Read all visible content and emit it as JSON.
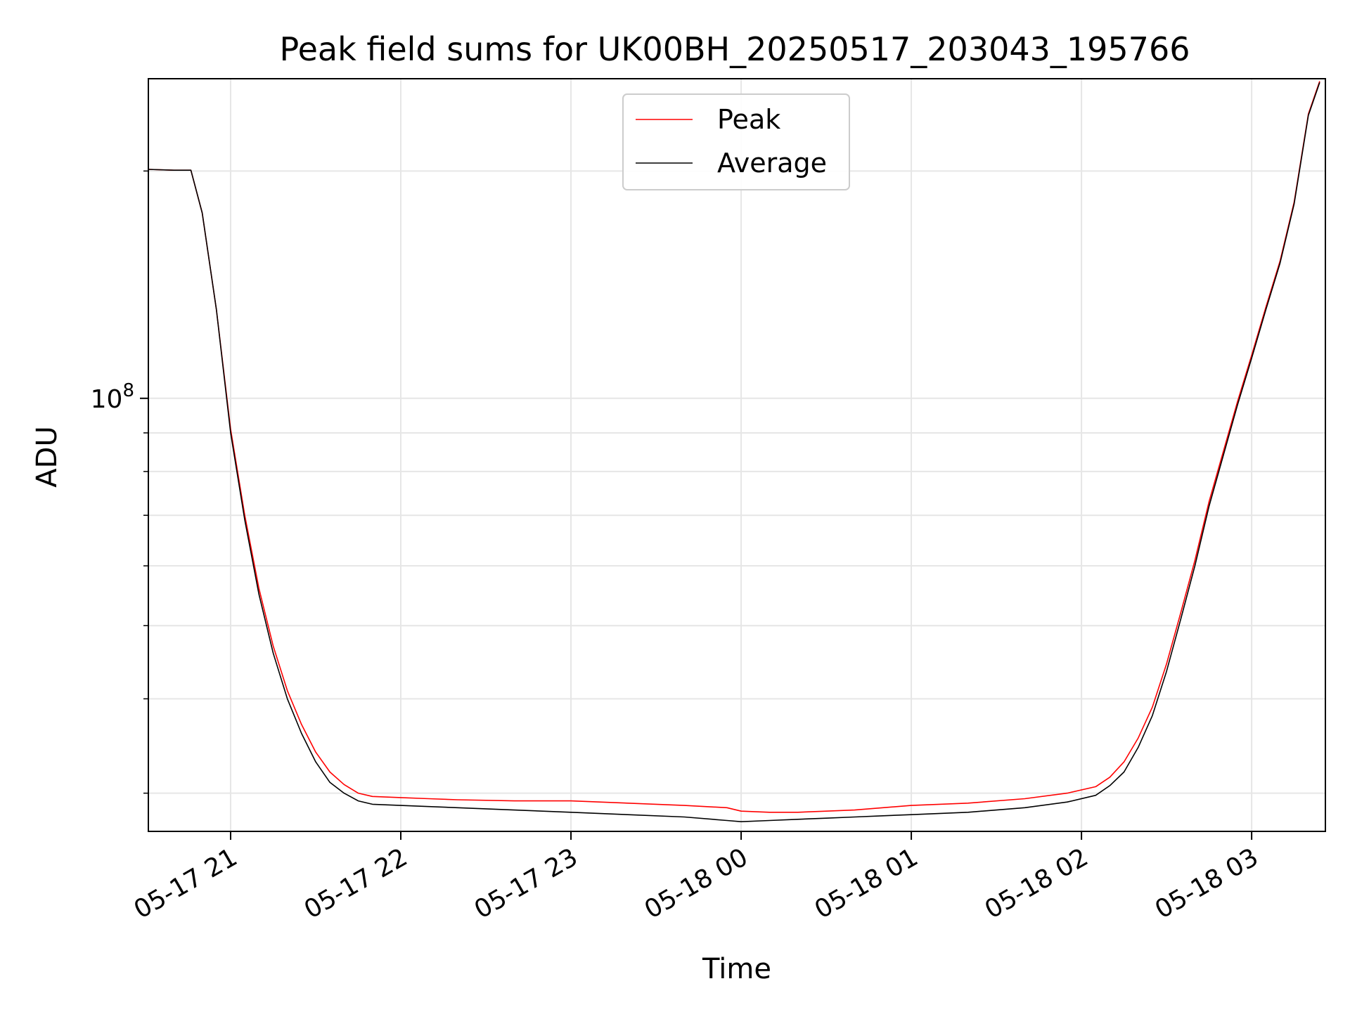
{
  "chart_data": {
    "type": "line",
    "title": "Peak field sums for UK00BH_20250517_203043_195766",
    "xlabel": "Time",
    "ylabel": "ADU",
    "y_scale": "log",
    "xlim": [
      "2025-05-17 20:31",
      "2025-05-18 03:26"
    ],
    "ylim": [
      26700000,
      265000000
    ],
    "x_ticks": [
      {
        "value": "2025-05-17 21:00",
        "label": "05-17 21"
      },
      {
        "value": "2025-05-17 22:00",
        "label": "05-17 22"
      },
      {
        "value": "2025-05-17 23:00",
        "label": "05-17 23"
      },
      {
        "value": "2025-05-18 00:00",
        "label": "05-18 00"
      },
      {
        "value": "2025-05-18 01:00",
        "label": "05-18 01"
      },
      {
        "value": "2025-05-18 02:00",
        "label": "05-18 02"
      },
      {
        "value": "2025-05-18 03:00",
        "label": "05-18 03"
      }
    ],
    "y_ticks": [
      {
        "value": 100000000,
        "label_base": "10",
        "label_exp": "8"
      }
    ],
    "y_minor_ticks": [
      30000000,
      40000000,
      50000000,
      60000000,
      70000000,
      80000000,
      90000000,
      200000000
    ],
    "grid": true,
    "legend": "upper-center",
    "series": [
      {
        "name": "Peak",
        "color": "#ff0000",
        "x": [
          "2025-05-17 20:31",
          "2025-05-17 20:40",
          "2025-05-17 20:46",
          "2025-05-17 20:50",
          "2025-05-17 20:55",
          "2025-05-17 21:00",
          "2025-05-17 21:05",
          "2025-05-17 21:10",
          "2025-05-17 21:15",
          "2025-05-17 21:20",
          "2025-05-17 21:25",
          "2025-05-17 21:30",
          "2025-05-17 21:35",
          "2025-05-17 21:40",
          "2025-05-17 21:45",
          "2025-05-17 21:50",
          "2025-05-17 22:00",
          "2025-05-17 22:10",
          "2025-05-17 22:20",
          "2025-05-17 22:40",
          "2025-05-17 23:00",
          "2025-05-17 23:20",
          "2025-05-17 23:40",
          "2025-05-17 23:55",
          "2025-05-18 00:00",
          "2025-05-18 00:10",
          "2025-05-18 00:20",
          "2025-05-18 00:30",
          "2025-05-18 00:40",
          "2025-05-18 00:50",
          "2025-05-18 01:00",
          "2025-05-18 01:20",
          "2025-05-18 01:40",
          "2025-05-18 01:55",
          "2025-05-18 02:05",
          "2025-05-18 02:10",
          "2025-05-18 02:15",
          "2025-05-18 02:20",
          "2025-05-18 02:25",
          "2025-05-18 02:30",
          "2025-05-18 02:35",
          "2025-05-18 02:40",
          "2025-05-18 02:45",
          "2025-05-18 02:50",
          "2025-05-18 02:55",
          "2025-05-18 03:00",
          "2025-05-18 03:05",
          "2025-05-18 03:10",
          "2025-05-18 03:15",
          "2025-05-18 03:20",
          "2025-05-18 03:24"
        ],
        "values": [
          201000000,
          200500000,
          200500000,
          176000000,
          131000000,
          91000000,
          70000000,
          56000000,
          47000000,
          41000000,
          37000000,
          34000000,
          32000000,
          30800000,
          30000000,
          29700000,
          29600000,
          29500000,
          29400000,
          29300000,
          29300000,
          29100000,
          28900000,
          28700000,
          28400000,
          28300000,
          28300000,
          28400000,
          28500000,
          28700000,
          28900000,
          29100000,
          29500000,
          30000000,
          30600000,
          31500000,
          33000000,
          35500000,
          39000000,
          44500000,
          52000000,
          61000000,
          73000000,
          85000000,
          99000000,
          114000000,
          132000000,
          152000000,
          182000000,
          238000000,
          263000000
        ]
      },
      {
        "name": "Average",
        "color": "#000000",
        "x": [
          "2025-05-17 20:31",
          "2025-05-17 20:40",
          "2025-05-17 20:46",
          "2025-05-17 20:50",
          "2025-05-17 20:55",
          "2025-05-17 21:00",
          "2025-05-17 21:05",
          "2025-05-17 21:10",
          "2025-05-17 21:15",
          "2025-05-17 21:20",
          "2025-05-17 21:25",
          "2025-05-17 21:30",
          "2025-05-17 21:35",
          "2025-05-17 21:40",
          "2025-05-17 21:45",
          "2025-05-17 21:50",
          "2025-05-17 22:00",
          "2025-05-17 22:10",
          "2025-05-17 22:20",
          "2025-05-17 22:40",
          "2025-05-17 23:00",
          "2025-05-17 23:20",
          "2025-05-17 23:40",
          "2025-05-17 23:55",
          "2025-05-18 00:00",
          "2025-05-18 00:10",
          "2025-05-18 00:20",
          "2025-05-18 00:30",
          "2025-05-18 00:40",
          "2025-05-18 00:50",
          "2025-05-18 01:00",
          "2025-05-18 01:20",
          "2025-05-18 01:40",
          "2025-05-18 01:55",
          "2025-05-18 02:05",
          "2025-05-18 02:10",
          "2025-05-18 02:15",
          "2025-05-18 02:20",
          "2025-05-18 02:25",
          "2025-05-18 02:30",
          "2025-05-18 02:35",
          "2025-05-18 02:40",
          "2025-05-18 02:45",
          "2025-05-18 02:50",
          "2025-05-18 02:55",
          "2025-05-18 03:00",
          "2025-05-18 03:05",
          "2025-05-18 03:10",
          "2025-05-18 03:15",
          "2025-05-18 03:20",
          "2025-05-18 03:24"
        ],
        "values": [
          201000000,
          200500000,
          200500000,
          176000000,
          131000000,
          90000000,
          69000000,
          55000000,
          46000000,
          40000000,
          36000000,
          33000000,
          31000000,
          30000000,
          29300000,
          29000000,
          28900000,
          28800000,
          28700000,
          28500000,
          28300000,
          28100000,
          27900000,
          27600000,
          27500000,
          27600000,
          27700000,
          27800000,
          27900000,
          28000000,
          28100000,
          28300000,
          28700000,
          29200000,
          29800000,
          30700000,
          32000000,
          34500000,
          38000000,
          43500000,
          51000000,
          60000000,
          72000000,
          84000000,
          98000000,
          113000000,
          131000000,
          151000000,
          181000000,
          237000000,
          262000000
        ]
      }
    ]
  }
}
